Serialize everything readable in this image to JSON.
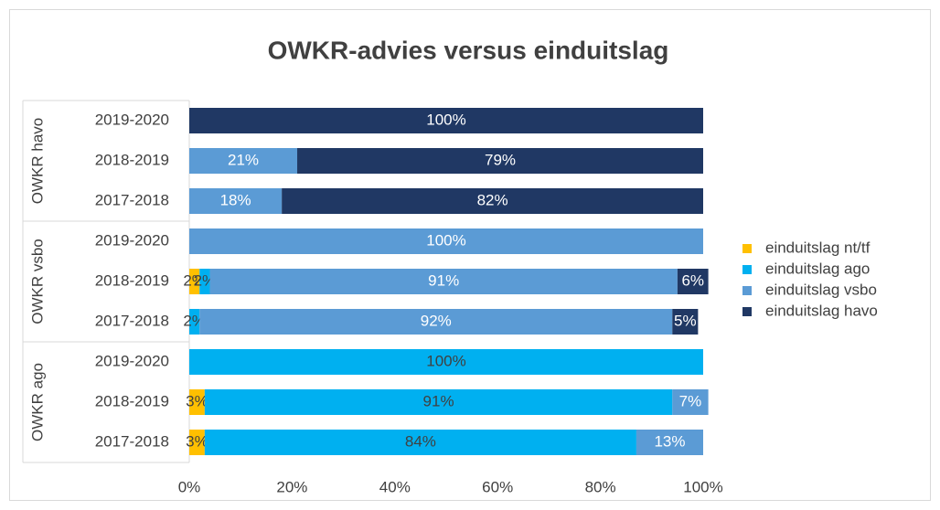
{
  "chart_data": {
    "type": "stacked-bar-horizontal",
    "title": "OWKR-advies versus einduitslag",
    "groups": [
      {
        "name": "OWKR havo",
        "categories": [
          "2019-2020",
          "2018-2019",
          "2017-2018"
        ]
      },
      {
        "name": "OWKR vsbo",
        "categories": [
          "2019-2020",
          "2018-2019",
          "2017-2018"
        ]
      },
      {
        "name": "OWKR ago",
        "categories": [
          "2019-2020",
          "2018-2019",
          "2017-2018"
        ]
      }
    ],
    "series": [
      {
        "name": "einduitslag nt/tf",
        "color": "#ffc000",
        "label_color": "#404040",
        "values": [
          null,
          null,
          null,
          null,
          2,
          null,
          null,
          3,
          3
        ],
        "value_labels": [
          null,
          null,
          null,
          null,
          "2%",
          null,
          null,
          "3%",
          "3%"
        ]
      },
      {
        "name": "einduitslag ago",
        "color": "#00b0f0",
        "label_color": "#404040",
        "values": [
          null,
          null,
          null,
          null,
          2,
          2,
          100,
          91,
          84
        ],
        "value_labels": [
          null,
          null,
          null,
          null,
          "2%",
          "2%",
          "100%",
          "91%",
          "84%"
        ]
      },
      {
        "name": "einduitslag vsbo",
        "color": "#5b9bd5",
        "label_color": "#ffffff",
        "values": [
          null,
          21,
          18,
          100,
          91,
          92,
          null,
          7,
          13
        ],
        "value_labels": [
          null,
          "21%",
          "18%",
          "100%",
          "91%",
          "92%",
          null,
          "7%",
          "13%"
        ]
      },
      {
        "name": "einduitslag havo",
        "color": "#203864",
        "label_color": "#ffffff",
        "values": [
          100,
          79,
          82,
          null,
          6,
          5,
          null,
          null,
          null
        ],
        "value_labels": [
          "100%",
          "79%",
          "82%",
          null,
          "6%",
          "5%",
          null,
          null,
          null
        ]
      }
    ],
    "xlim": [
      0,
      100
    ],
    "xticks": [
      {
        "value": 0,
        "label": "0%"
      },
      {
        "value": 20,
        "label": "20%"
      },
      {
        "value": 40,
        "label": "40%"
      },
      {
        "value": 60,
        "label": "60%"
      },
      {
        "value": 80,
        "label": "80%"
      },
      {
        "value": 100,
        "label": "100%"
      }
    ],
    "legend": "right"
  }
}
